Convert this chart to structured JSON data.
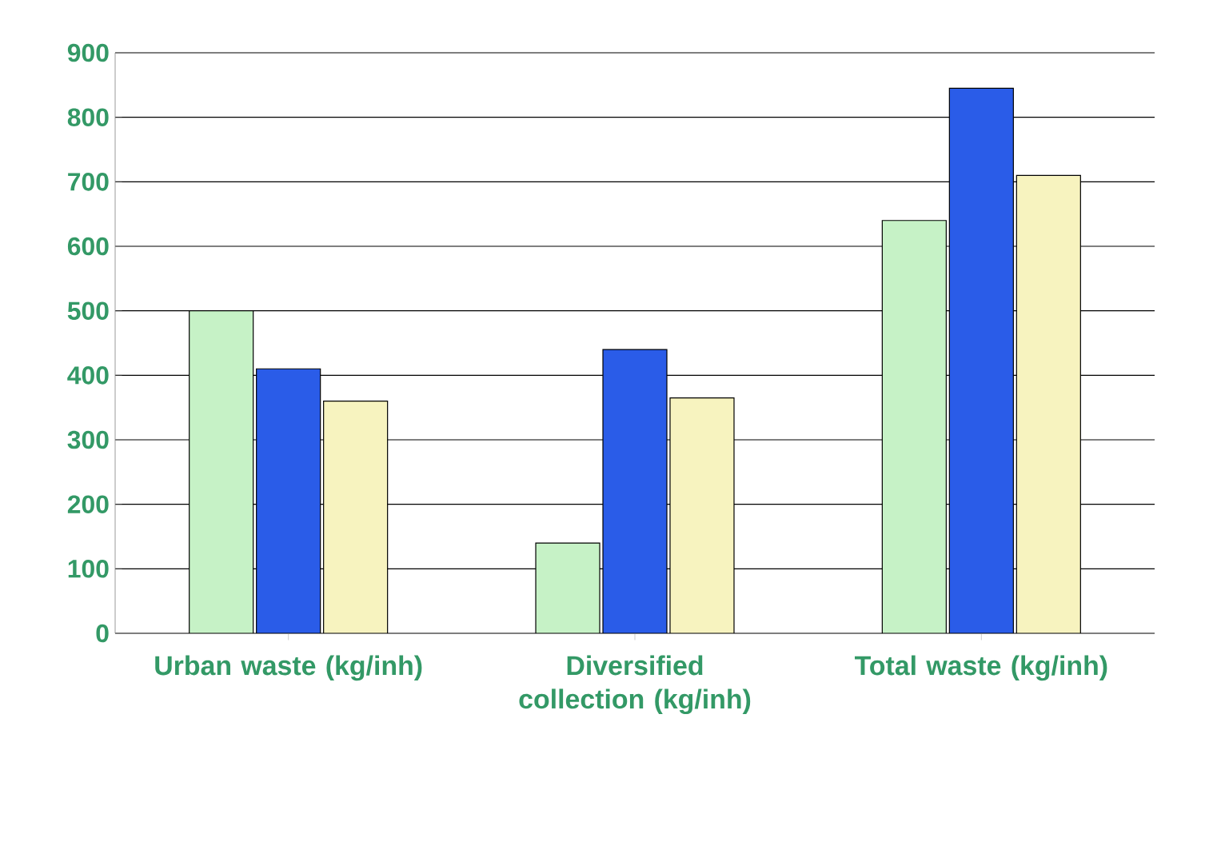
{
  "chart_data": {
    "type": "bar",
    "categories": [
      "Urban waste (kg/inh)",
      "Diversified collection (kg/inh)",
      "Total waste (kg/inh)"
    ],
    "series": [
      {
        "color": "#c6f2c6",
        "values": [
          500,
          140,
          640
        ]
      },
      {
        "color": "#2a5ce8",
        "values": [
          410,
          440,
          845
        ]
      },
      {
        "color": "#f7f3bf",
        "values": [
          360,
          365,
          710
        ]
      }
    ],
    "ylim": [
      0,
      900
    ],
    "yticks": [
      0,
      100,
      200,
      300,
      400,
      500,
      600,
      700,
      800,
      900
    ],
    "grid": "y"
  }
}
